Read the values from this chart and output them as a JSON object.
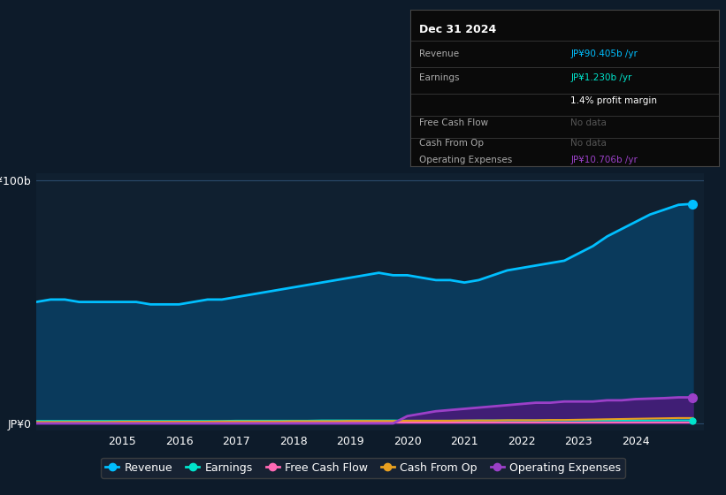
{
  "bg_color": "#0d1b2a",
  "plot_bg_color": "#102030",
  "years": [
    2013.5,
    2013.75,
    2014,
    2014.25,
    2014.5,
    2014.75,
    2015,
    2015.25,
    2015.5,
    2015.75,
    2016,
    2016.25,
    2016.5,
    2016.75,
    2017,
    2017.25,
    2017.5,
    2017.75,
    2018,
    2018.25,
    2018.5,
    2018.75,
    2019,
    2019.25,
    2019.5,
    2019.75,
    2020,
    2020.25,
    2020.5,
    2020.75,
    2021,
    2021.25,
    2021.5,
    2021.75,
    2022,
    2022.25,
    2022.5,
    2022.75,
    2023,
    2023.25,
    2023.5,
    2023.75,
    2024,
    2024.25,
    2024.5,
    2024.75,
    2025
  ],
  "revenue": [
    50,
    51,
    51,
    50,
    50,
    50,
    50,
    50,
    49,
    49,
    49,
    50,
    51,
    51,
    52,
    53,
    54,
    55,
    56,
    57,
    58,
    59,
    60,
    61,
    62,
    61,
    61,
    60,
    59,
    59,
    58,
    59,
    61,
    63,
    64,
    65,
    66,
    67,
    70,
    73,
    77,
    80,
    83,
    86,
    88,
    90,
    90.405
  ],
  "earnings": [
    1.0,
    1.0,
    1.0,
    1.0,
    1.0,
    1.0,
    1.0,
    1.0,
    1.0,
    1.0,
    1.0,
    1.0,
    1.0,
    1.0,
    1.1,
    1.1,
    1.1,
    1.1,
    1.1,
    1.1,
    1.2,
    1.2,
    1.2,
    1.2,
    1.2,
    1.2,
    1.1,
    1.1,
    1.1,
    1.1,
    1.1,
    1.2,
    1.2,
    1.2,
    1.2,
    1.2,
    1.2,
    1.2,
    1.2,
    1.2,
    1.2,
    1.2,
    1.2,
    1.2,
    1.2,
    1.23,
    1.23
  ],
  "free_cash_flow": [
    0.3,
    0.3,
    0.3,
    0.3,
    0.3,
    0.3,
    0.3,
    0.3,
    0.3,
    0.3,
    0.3,
    0.3,
    0.3,
    0.3,
    0.3,
    0.3,
    0.3,
    0.3,
    0.3,
    0.3,
    0.3,
    0.3,
    0.3,
    0.3,
    0.3,
    0.3,
    0.3,
    0.3,
    0.3,
    0.3,
    0.3,
    0.3,
    0.3,
    0.3,
    0.3,
    0.3,
    0.3,
    0.3,
    0.3,
    0.3,
    0.3,
    0.3,
    0.3,
    0.3,
    0.3,
    0.3,
    0.3
  ],
  "cash_from_op": [
    0.6,
    0.6,
    0.6,
    0.6,
    0.6,
    0.6,
    0.7,
    0.7,
    0.7,
    0.7,
    0.7,
    0.7,
    0.7,
    0.8,
    0.8,
    0.8,
    0.8,
    0.8,
    0.9,
    0.9,
    0.9,
    0.9,
    1.0,
    1.0,
    1.0,
    1.0,
    1.1,
    1.1,
    1.1,
    1.1,
    1.2,
    1.2,
    1.2,
    1.3,
    1.3,
    1.3,
    1.4,
    1.4,
    1.5,
    1.6,
    1.7,
    1.8,
    1.9,
    2.0,
    2.1,
    2.2,
    2.2
  ],
  "operating_expenses": [
    0.0,
    0.0,
    0.0,
    0.0,
    0.0,
    0.0,
    0.0,
    0.0,
    0.0,
    0.0,
    0.0,
    0.0,
    0.0,
    0.0,
    0.0,
    0.0,
    0.0,
    0.0,
    0.0,
    0.0,
    0.0,
    0.0,
    0.0,
    0.0,
    0.0,
    0.0,
    3.0,
    4.0,
    5.0,
    5.5,
    6.0,
    6.5,
    7.0,
    7.5,
    8.0,
    8.5,
    8.5,
    9.0,
    9.0,
    9.0,
    9.5,
    9.5,
    10.0,
    10.2,
    10.4,
    10.706,
    10.706
  ],
  "revenue_color": "#00bfff",
  "earnings_color": "#00e5cc",
  "free_cash_flow_color": "#ff69b4",
  "cash_from_op_color": "#e8a020",
  "operating_expenses_color": "#9b40c8",
  "fill_color": "#0a3a5c",
  "op_fill_color": "#4a1a7a",
  "xtick_labels": [
    "2015",
    "2016",
    "2017",
    "2018",
    "2019",
    "2020",
    "2021",
    "2022",
    "2023",
    "2024"
  ],
  "xtick_positions": [
    2015,
    2016,
    2017,
    2018,
    2019,
    2020,
    2021,
    2022,
    2023,
    2024
  ],
  "panel_title": "Dec 31 2024",
  "panel_rows": [
    {
      "label": "Revenue",
      "value": "JP¥90.405b /yr",
      "value_color": "#00bfff",
      "nodata": false
    },
    {
      "label": "Earnings",
      "value": "JP¥1.230b /yr",
      "value_color": "#00e5cc",
      "nodata": false
    },
    {
      "label": "",
      "value": "1.4% profit margin",
      "value_color": "#ffffff",
      "nodata": false
    },
    {
      "label": "Free Cash Flow",
      "value": "No data",
      "value_color": "#666666",
      "nodata": true
    },
    {
      "label": "Cash From Op",
      "value": "No data",
      "value_color": "#666666",
      "nodata": true
    },
    {
      "label": "Operating Expenses",
      "value": "JP¥10.706b /yr",
      "value_color": "#9b40c8",
      "nodata": false
    }
  ],
  "legend_labels": [
    "Revenue",
    "Earnings",
    "Free Cash Flow",
    "Cash From Op",
    "Operating Expenses"
  ],
  "legend_colors": [
    "#00bfff",
    "#00e5cc",
    "#ff69b4",
    "#e8a020",
    "#9b40c8"
  ]
}
